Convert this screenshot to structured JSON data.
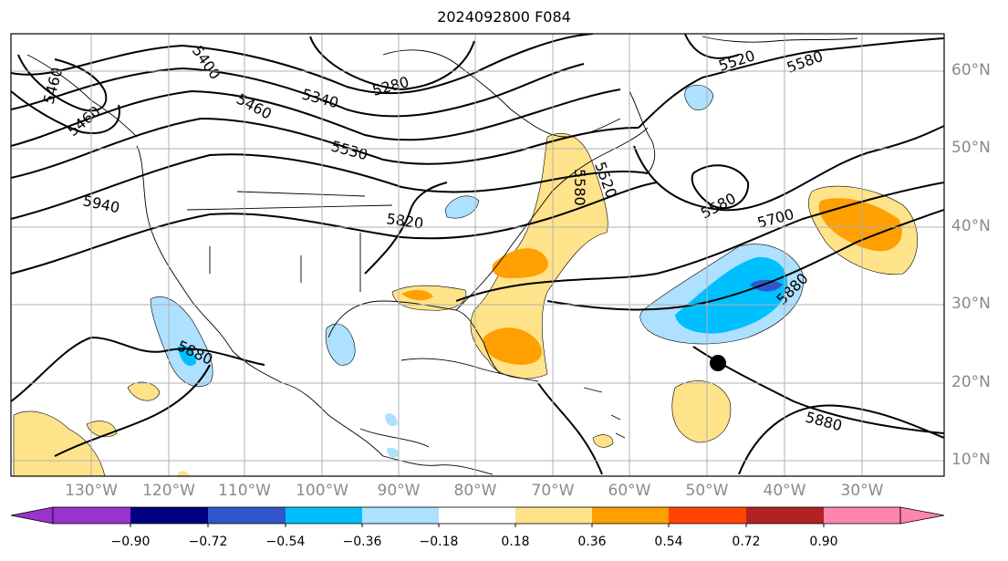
{
  "title": "2024092800 F084",
  "lat_labels": [
    "60°N",
    "50°N",
    "40°N",
    "30°N",
    "20°N",
    "10°N"
  ],
  "lon_labels": [
    "130°W",
    "120°W",
    "110°W",
    "100°W",
    "90°W",
    "80°W",
    "70°W",
    "60°W",
    "50°W",
    "40°W",
    "30°W"
  ],
  "contour_labels": [
    "5460",
    "5400",
    "5460",
    "5340",
    "5280",
    "5520",
    "5580",
    "5460",
    "5530",
    "5940",
    "5820",
    "5880",
    "5580",
    "5700",
    "5880",
    "5880",
    "5520",
    "5580"
  ],
  "colorbar": {
    "ticks": [
      "−0.90",
      "−0.72",
      "−0.54",
      "−0.36",
      "−0.18",
      "0.18",
      "0.36",
      "0.54",
      "0.72",
      "0.90"
    ],
    "colors": [
      "#9933cc",
      "#000080",
      "#3355cc",
      "#00bfff",
      "#aee0ff",
      "#ffffff",
      "#ffe38a",
      "#ff9f00",
      "#ff4500",
      "#b22222",
      "#ff85b0"
    ]
  },
  "colors": {
    "grid": "#b0b0b0",
    "contour": "#000000",
    "coast": "#000000"
  }
}
